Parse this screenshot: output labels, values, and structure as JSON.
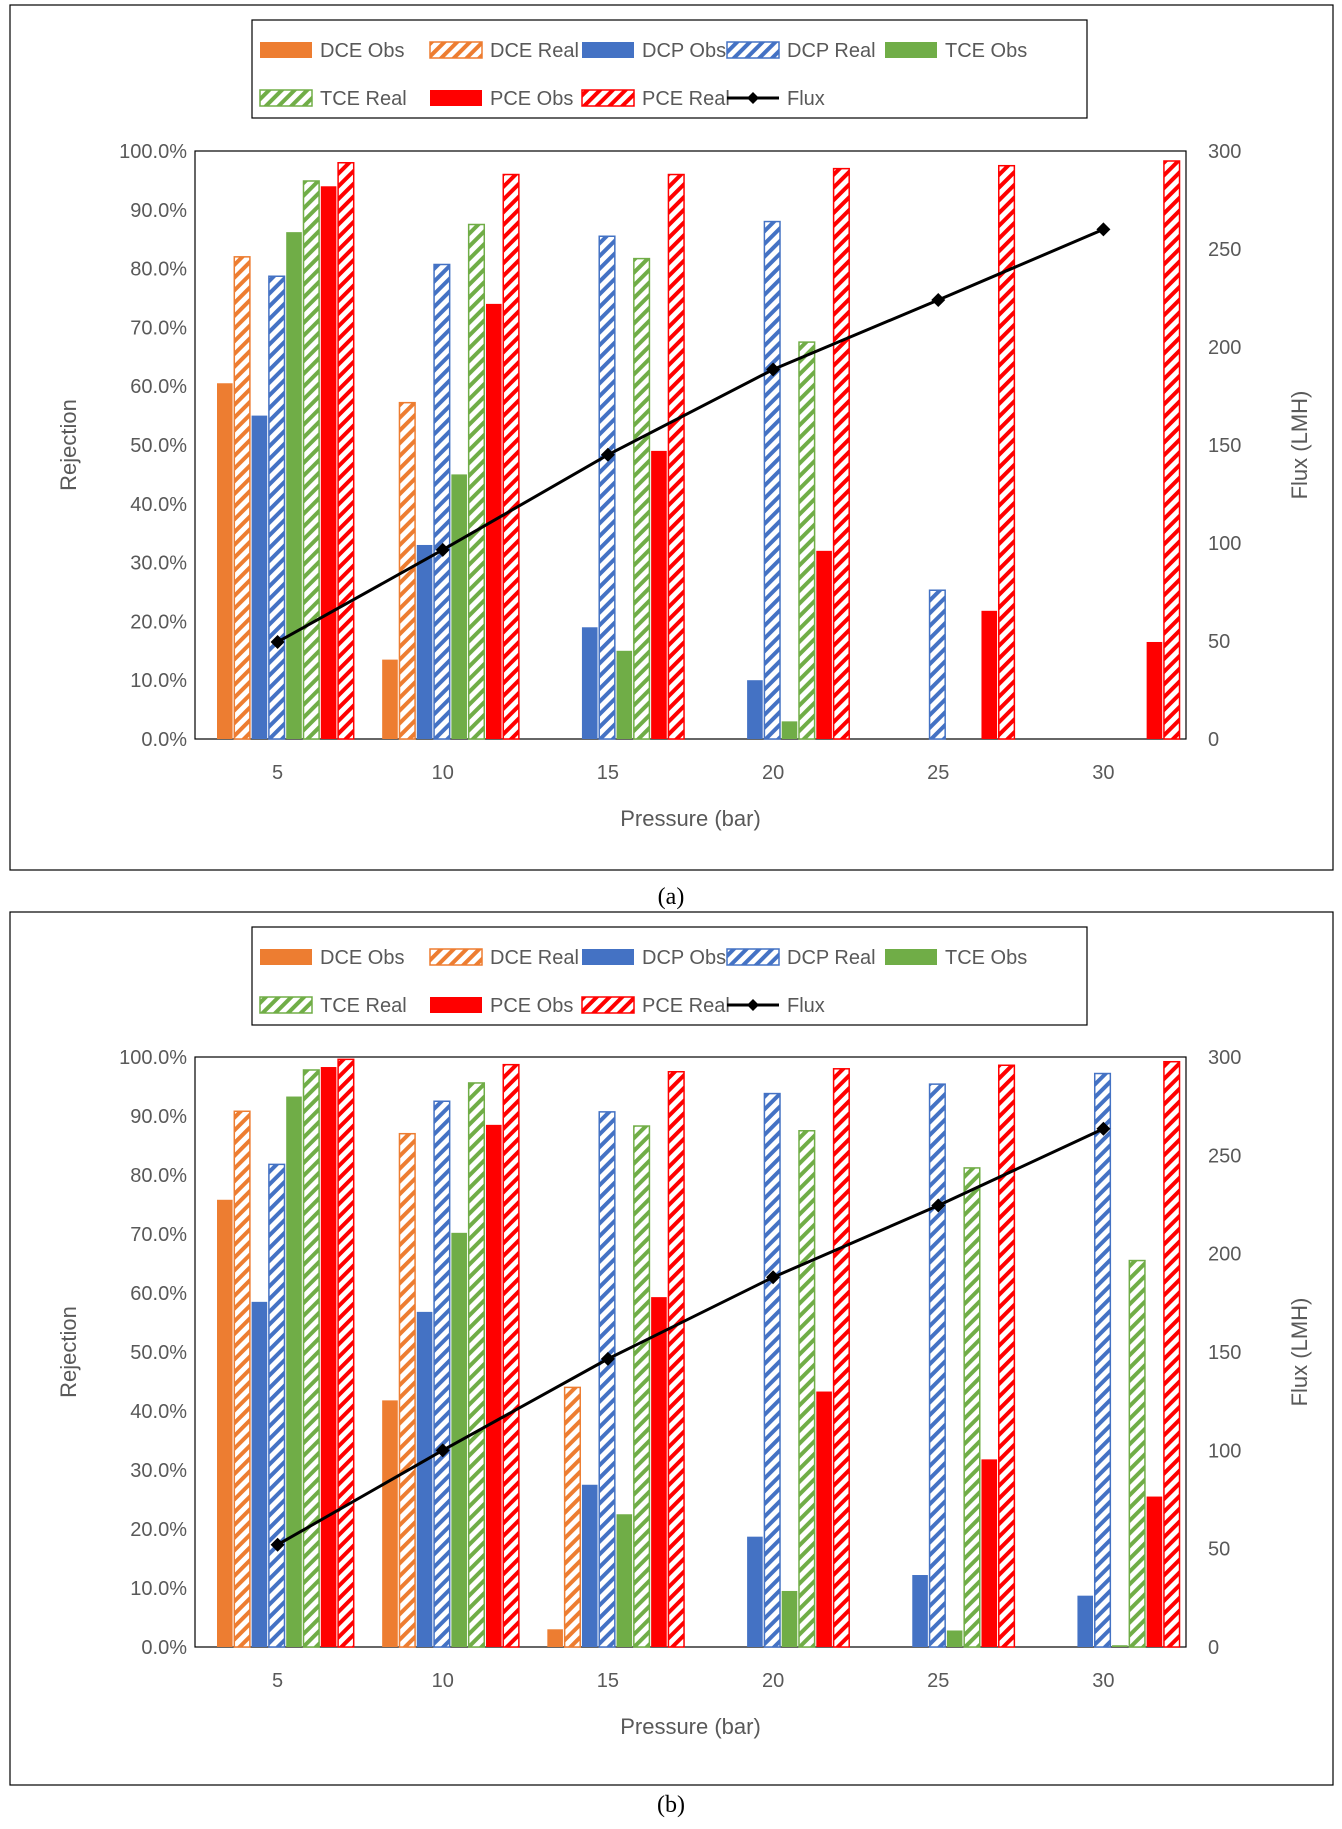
{
  "caption_a": "(a)",
  "caption_b": "(b)",
  "colors": {
    "dce": "#ED7D31",
    "dcp": "#4472C4",
    "tce": "#70AD47",
    "pce": "#FF0000",
    "flux": "#000000"
  },
  "chart_data": [
    {
      "type": "bar",
      "panel": "a",
      "title": "",
      "xlabel": "Pressure (bar)",
      "ylabel": "Rejection",
      "y2label": "Flux (LMH)",
      "categories": [
        "5",
        "10",
        "15",
        "20",
        "25",
        "30"
      ],
      "ylim": [
        0,
        100
      ],
      "y2lim": [
        0,
        300
      ],
      "y_ticks": [
        "0.0%",
        "10.0%",
        "20.0%",
        "30.0%",
        "40.0%",
        "50.0%",
        "60.0%",
        "70.0%",
        "80.0%",
        "90.0%",
        "100.0%"
      ],
      "y2_ticks": [
        "0",
        "50",
        "100",
        "150",
        "200",
        "250",
        "300"
      ],
      "legend": [
        "DCE Obs",
        "DCE Real",
        "DCP Obs",
        "DCP Real",
        "TCE Obs",
        "TCE Real",
        "PCE Obs",
        "PCE Real",
        "Flux"
      ],
      "legend_position": "top-center",
      "series": [
        {
          "name": "DCE Obs",
          "style": "solid",
          "color": "#ED7D31",
          "values": [
            60.5,
            13.5,
            0,
            0,
            0,
            0
          ]
        },
        {
          "name": "DCE Real",
          "style": "hatched",
          "color": "#ED7D31",
          "values": [
            82.0,
            57.2,
            0,
            0,
            0,
            0
          ]
        },
        {
          "name": "DCP Obs",
          "style": "solid",
          "color": "#4472C4",
          "values": [
            55.0,
            33.0,
            19.0,
            10.0,
            0,
            0
          ]
        },
        {
          "name": "DCP Real",
          "style": "hatched",
          "color": "#4472C4",
          "values": [
            78.7,
            80.7,
            85.5,
            88.0,
            25.3,
            0
          ]
        },
        {
          "name": "TCE Obs",
          "style": "solid",
          "color": "#70AD47",
          "values": [
            86.2,
            45.0,
            15.0,
            3.0,
            0,
            0
          ]
        },
        {
          "name": "TCE Real",
          "style": "hatched",
          "color": "#70AD47",
          "values": [
            94.9,
            87.5,
            81.7,
            67.5,
            0,
            0
          ]
        },
        {
          "name": "PCE Obs",
          "style": "solid",
          "color": "#FF0000",
          "values": [
            94.0,
            74.0,
            49.0,
            32.0,
            21.8,
            16.5
          ]
        },
        {
          "name": "PCE Real",
          "style": "hatched",
          "color": "#FF0000",
          "values": [
            98.0,
            96.0,
            96.0,
            97.0,
            97.5,
            98.3
          ]
        },
        {
          "name": "Flux",
          "style": "line",
          "axis": "secondary",
          "color": "#000000",
          "values": [
            49.5,
            96.5,
            145.0,
            188.5,
            224.0,
            260.0
          ]
        }
      ]
    },
    {
      "type": "bar",
      "panel": "b",
      "title": "",
      "xlabel": "Pressure (bar)",
      "ylabel": "Rejection",
      "y2label": "Flux (LMH)",
      "categories": [
        "5",
        "10",
        "15",
        "20",
        "25",
        "30"
      ],
      "ylim": [
        0,
        100
      ],
      "y2lim": [
        0,
        300
      ],
      "y_ticks": [
        "0.0%",
        "10.0%",
        "20.0%",
        "30.0%",
        "40.0%",
        "50.0%",
        "60.0%",
        "70.0%",
        "80.0%",
        "90.0%",
        "100.0%"
      ],
      "y2_ticks": [
        "0",
        "50",
        "100",
        "150",
        "200",
        "250",
        "300"
      ],
      "legend": [
        "DCE Obs",
        "DCE Real",
        "DCP Obs",
        "DCP Real",
        "TCE Obs",
        "TCE Real",
        "PCE Obs",
        "PCE Real",
        "Flux"
      ],
      "legend_position": "top-center",
      "series": [
        {
          "name": "DCE Obs",
          "style": "solid",
          "color": "#ED7D31",
          "values": [
            75.8,
            41.8,
            3.0,
            0,
            0,
            0
          ]
        },
        {
          "name": "DCE Real",
          "style": "hatched",
          "color": "#ED7D31",
          "values": [
            90.8,
            87.0,
            44.0,
            0,
            0,
            0
          ]
        },
        {
          "name": "DCP Obs",
          "style": "solid",
          "color": "#4472C4",
          "values": [
            58.5,
            56.8,
            27.5,
            18.7,
            12.2,
            8.7
          ]
        },
        {
          "name": "DCP Real",
          "style": "hatched",
          "color": "#4472C4",
          "values": [
            81.8,
            92.5,
            90.7,
            93.8,
            95.4,
            97.2
          ]
        },
        {
          "name": "TCE Obs",
          "style": "solid",
          "color": "#70AD47",
          "values": [
            93.3,
            70.2,
            22.5,
            9.5,
            2.8,
            0.3
          ]
        },
        {
          "name": "TCE Real",
          "style": "hatched",
          "color": "#70AD47",
          "values": [
            97.8,
            95.6,
            88.3,
            87.5,
            81.2,
            65.5
          ]
        },
        {
          "name": "PCE Obs",
          "style": "solid",
          "color": "#FF0000",
          "values": [
            98.3,
            88.5,
            59.3,
            43.3,
            31.8,
            25.5
          ]
        },
        {
          "name": "PCE Real",
          "style": "hatched",
          "color": "#FF0000",
          "values": [
            99.6,
            98.7,
            97.5,
            98.0,
            98.6,
            99.2
          ]
        },
        {
          "name": "Flux",
          "style": "line",
          "axis": "secondary",
          "color": "#000000",
          "values": [
            52.0,
            100.0,
            146.5,
            188.0,
            224.5,
            263.5
          ]
        }
      ]
    }
  ]
}
